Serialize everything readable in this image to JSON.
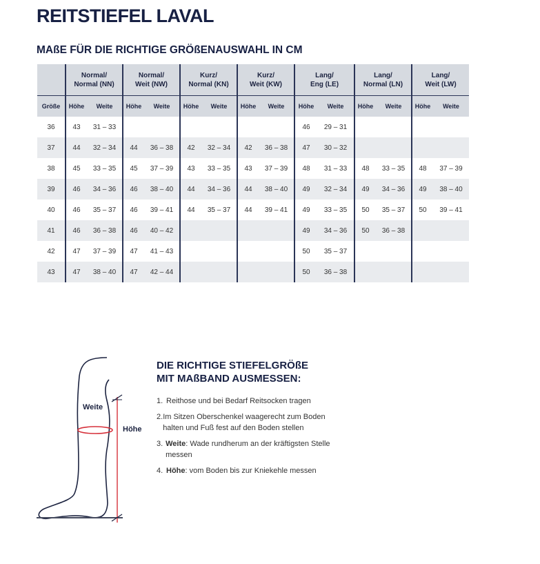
{
  "title": "REITSTIEFEL LAVAL",
  "subtitle": "MAßE FÜR DIE RICHTIGE GRÖßENAUSWAHL IN CM",
  "table": {
    "groups": [
      [
        "Normal/",
        "Normal (NN)"
      ],
      [
        "Normal/",
        "Weit (NW)"
      ],
      [
        "Kurz/",
        "Normal (KN)"
      ],
      [
        "Kurz/",
        "Weit (KW)"
      ],
      [
        "Lang/",
        "Eng (LE)"
      ],
      [
        "Lang/",
        "Normal (LN)"
      ],
      [
        "Lang/",
        "Weit (LW)"
      ]
    ],
    "size_label": "Größe",
    "height_label": "Höhe",
    "width_label": "Weite",
    "rows": [
      [
        "36",
        "43",
        "31 – 33",
        "",
        "",
        "",
        "",
        "",
        "",
        "46",
        "29 – 31",
        "",
        "",
        "",
        ""
      ],
      [
        "37",
        "44",
        "32 – 34",
        "44",
        "36 – 38",
        "42",
        "32 – 34",
        "42",
        "36 – 38",
        "47",
        "30 – 32",
        "",
        "",
        "",
        ""
      ],
      [
        "38",
        "45",
        "33 – 35",
        "45",
        "37 – 39",
        "43",
        "33 – 35",
        "43",
        "37 – 39",
        "48",
        "31 – 33",
        "48",
        "33 – 35",
        "48",
        "37 – 39"
      ],
      [
        "39",
        "46",
        "34 – 36",
        "46",
        "38 – 40",
        "44",
        "34 – 36",
        "44",
        "38 – 40",
        "49",
        "32 – 34",
        "49",
        "34 – 36",
        "49",
        "38 – 40"
      ],
      [
        "40",
        "46",
        "35 – 37",
        "46",
        "39 – 41",
        "44",
        "35 – 37",
        "44",
        "39 – 41",
        "49",
        "33 – 35",
        "50",
        "35 – 37",
        "50",
        "39 – 41"
      ],
      [
        "41",
        "46",
        "36 – 38",
        "46",
        "40 – 42",
        "",
        "",
        "",
        "",
        "49",
        "34 – 36",
        "50",
        "36 – 38",
        "",
        ""
      ],
      [
        "42",
        "47",
        "37 – 39",
        "47",
        "41 – 43",
        "",
        "",
        "",
        "",
        "50",
        "35 – 37",
        "",
        "",
        "",
        ""
      ],
      [
        "43",
        "47",
        "38 – 40",
        "47",
        "42 – 44",
        "",
        "",
        "",
        "",
        "50",
        "36 – 38",
        "",
        "",
        "",
        ""
      ]
    ]
  },
  "figure": {
    "weite": "Weite",
    "hoehe": "Höhe"
  },
  "howto": {
    "title1": "DIE RICHTIGE STIEFELGRÖßE",
    "title2": "MIT MAßBAND AUSMESSEN:",
    "steps": [
      {
        "n": "1.",
        "b": "",
        "t": "Reithose und bei Bedarf Reitsocken tragen"
      },
      {
        "n": "2.",
        "b": "",
        "t": "Im Sitzen Oberschenkel waagerecht zum Boden halten und Fuß fest auf den Boden stellen"
      },
      {
        "n": "3.",
        "b": "Weite",
        "t": ": Wade rundherum an der kräftigsten Stelle messen"
      },
      {
        "n": "4.",
        "b": "Höhe",
        "t": ": vom Boden bis zur Kniekehle messen"
      }
    ]
  },
  "colors": {
    "navy": "#172043",
    "accent_red": "#d6303a",
    "header_bg": "#d6dae0",
    "stripe": "#e9ebee"
  }
}
